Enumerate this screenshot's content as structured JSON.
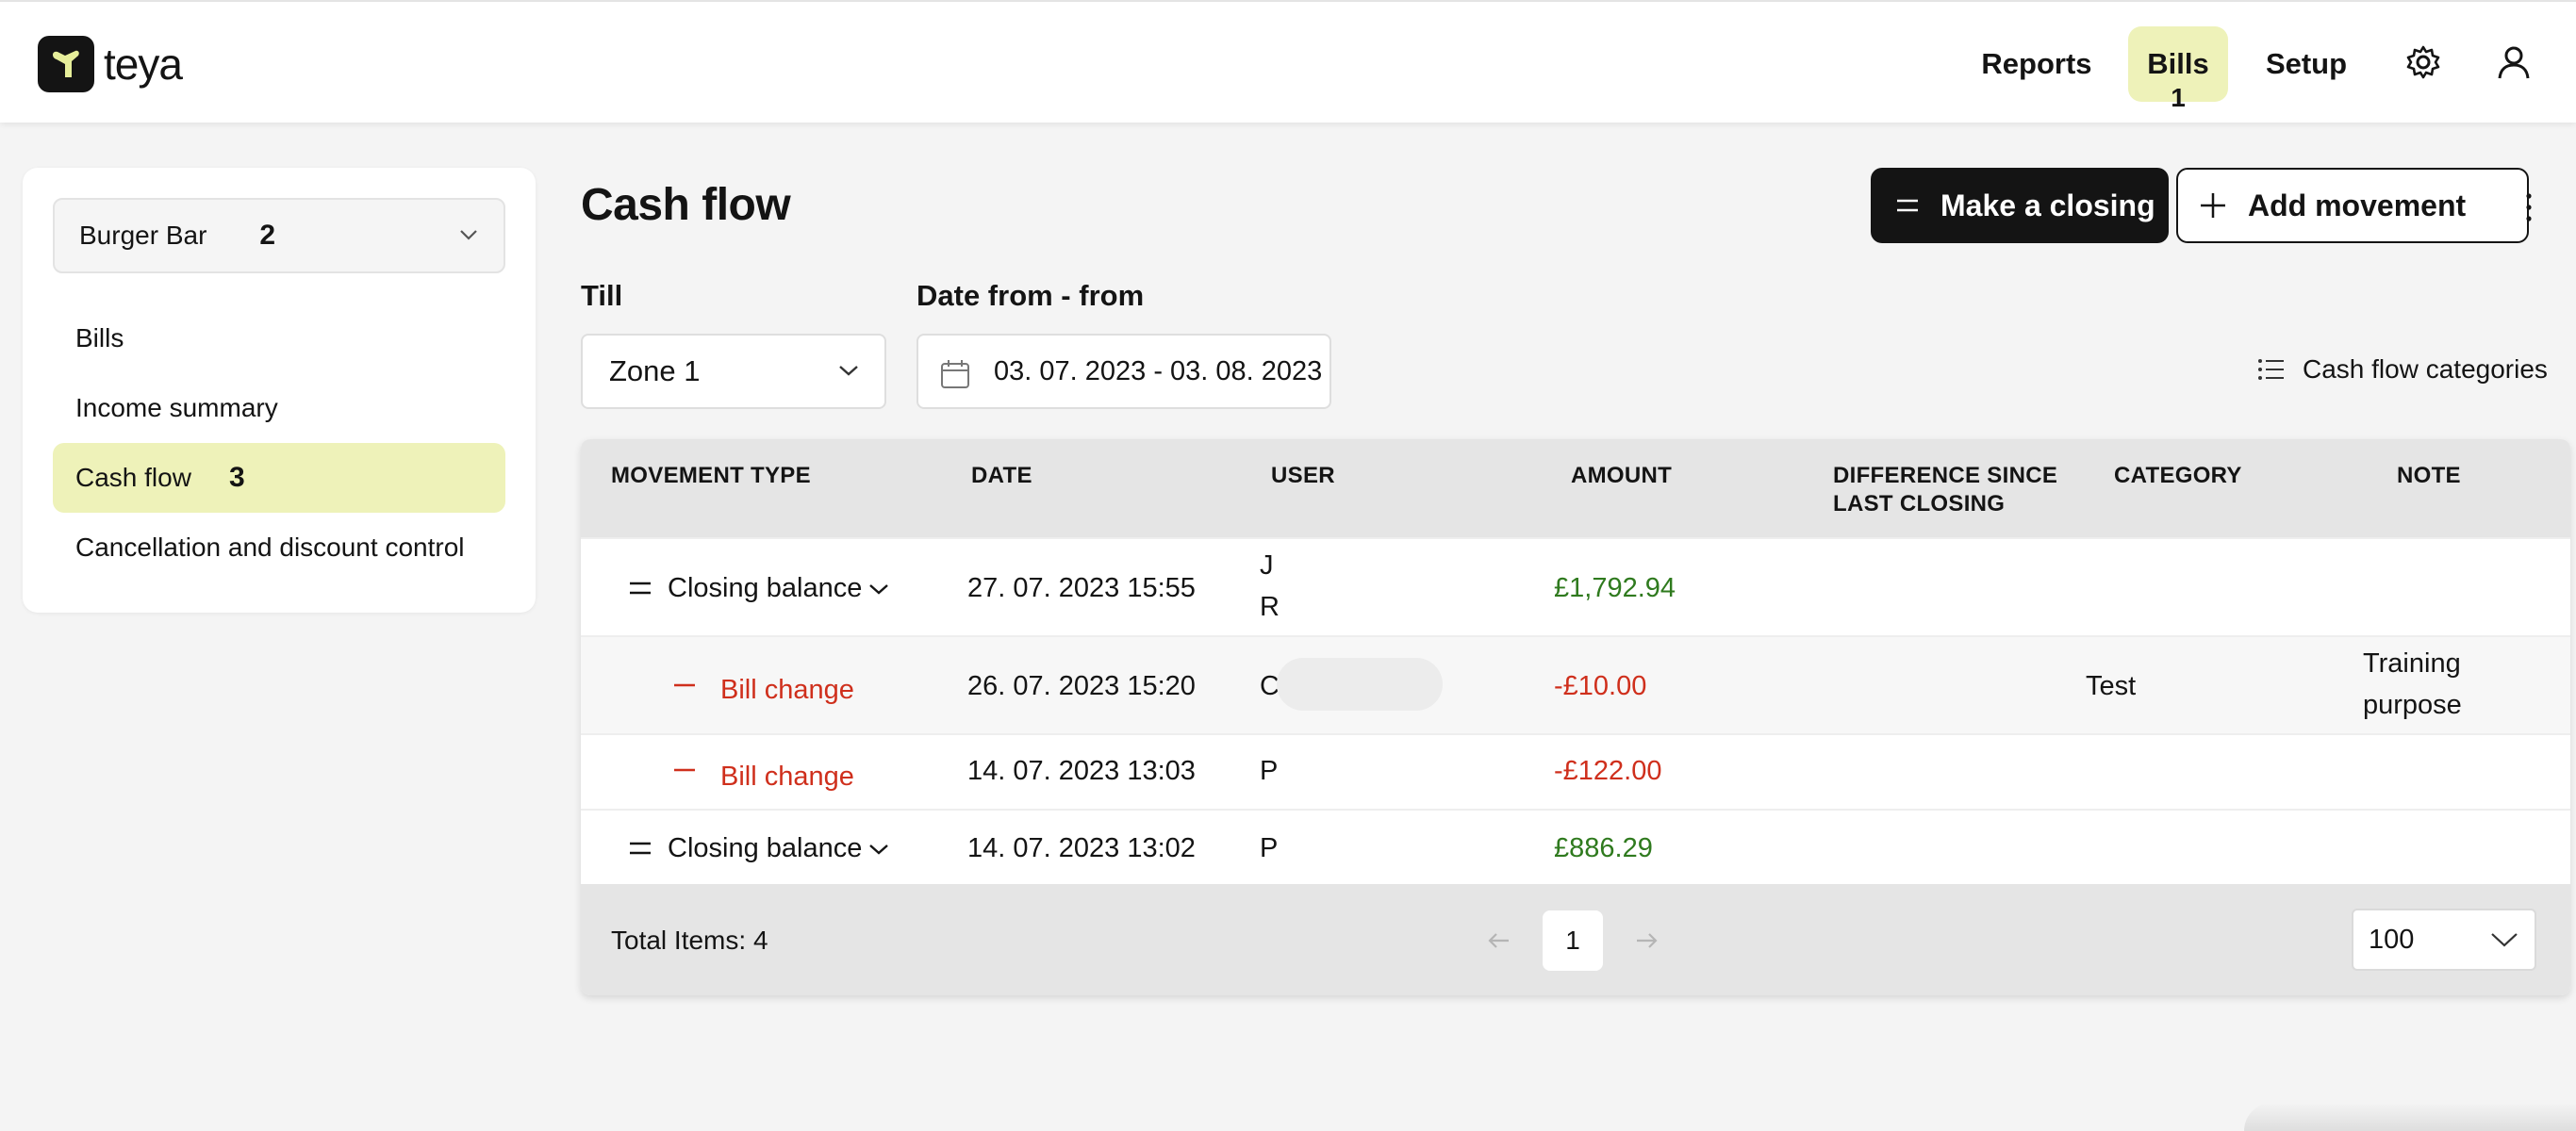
{
  "header": {
    "logo_text": "teya",
    "nav": {
      "reports": "Reports",
      "bills": "Bills",
      "bills_badge": "1",
      "setup": "Setup"
    },
    "icons": [
      "gear-icon",
      "user-icon"
    ]
  },
  "sidebar": {
    "venue": "Burger Bar",
    "venue_badge": "2",
    "items": [
      {
        "label": "Bills"
      },
      {
        "label": "Income summary"
      },
      {
        "label": "Cash flow",
        "badge": "3",
        "active": true
      },
      {
        "label": "Cancellation and discount control"
      }
    ]
  },
  "main": {
    "title": "Cash flow",
    "make_closing_label": "Make a closing",
    "add_movement_label": "Add movement",
    "till_label": "Till",
    "till_value": "Zone 1",
    "date_label": "Date from - from",
    "date_value": "03. 07. 2023 - 03. 08. 2023",
    "categories_link": "Cash flow categories"
  },
  "table": {
    "columns": [
      "MOVEMENT TYPE",
      "DATE",
      "USER",
      "AMOUNT",
      "DIFFERENCE SINCE",
      "LAST CLOSING",
      "CATEGORY",
      "NOTE"
    ],
    "rows": [
      {
        "type": "Closing balance",
        "date": "27. 07. 2023 15:55",
        "user_line1": "J",
        "user_line2": "R",
        "amount": "£1,792.94",
        "category": "",
        "note_line1": "",
        "note_line2": ""
      },
      {
        "type": "Bill change",
        "date": "26. 07. 2023 15:20",
        "user_line1": "C",
        "user_line2": "",
        "amount": "-£10.00",
        "category": "Test",
        "note_line1": "Training",
        "note_line2": "purpose"
      },
      {
        "type": "Bill change",
        "date": "14. 07. 2023 13:03",
        "user_line1": "P",
        "user_line2": "",
        "amount": "-£122.00",
        "category": "",
        "note_line1": "",
        "note_line2": ""
      },
      {
        "type": "Closing balance",
        "date": "14. 07. 2023 13:02",
        "user_line1": "P",
        "user_line2": "",
        "amount": "£886.29",
        "category": "",
        "note_line1": "",
        "note_line2": ""
      }
    ],
    "footer": {
      "total_items": "Total Items: 4",
      "current_page": "1",
      "per_page": "100"
    }
  },
  "colors": {
    "accent_highlight": "#eef2b9",
    "positive": "#2f7a1e",
    "negative": "#cf2f1c",
    "primary_button": "#141414"
  }
}
